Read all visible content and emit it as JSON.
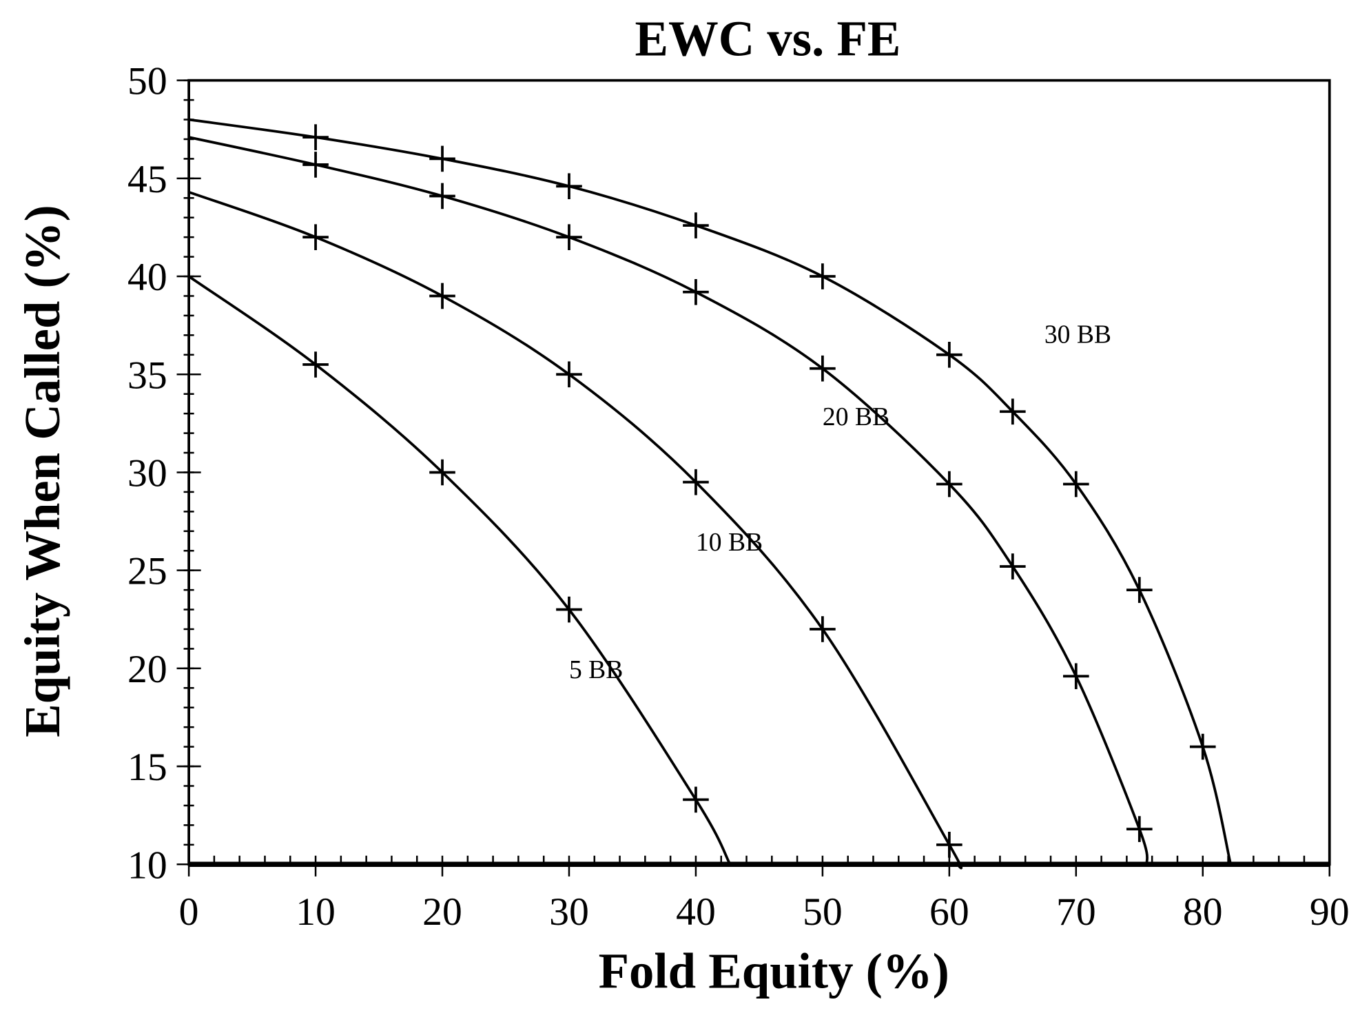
{
  "chart_data": {
    "type": "line",
    "title": "EWC vs. FE",
    "xlabel": "Fold Equity (%)",
    "ylabel": "Equity When Called (%)",
    "xlim": [
      0,
      90
    ],
    "ylim": [
      10,
      50
    ],
    "x_ticks": [
      0,
      10,
      20,
      30,
      40,
      50,
      60,
      70,
      80,
      90
    ],
    "y_ticks": [
      10,
      15,
      20,
      25,
      30,
      35,
      40,
      45,
      50
    ],
    "grid": false,
    "legend": "none (inline curve labels)",
    "series": [
      {
        "name": "5 BB",
        "label_at": [
          30,
          19.5
        ],
        "points": [
          [
            0,
            40
          ],
          [
            10,
            35.5
          ],
          [
            20,
            30
          ],
          [
            30,
            23
          ],
          [
            40,
            13.3
          ],
          [
            42.7,
            10
          ]
        ],
        "markers": [
          [
            10,
            35.5
          ],
          [
            20,
            30
          ],
          [
            30,
            23
          ],
          [
            40,
            13.3
          ]
        ]
      },
      {
        "name": "10 BB",
        "label_at": [
          40,
          26
        ],
        "points": [
          [
            0,
            44.3
          ],
          [
            10,
            42
          ],
          [
            20,
            39
          ],
          [
            30,
            35
          ],
          [
            40,
            29.5
          ],
          [
            50,
            22
          ],
          [
            60,
            11
          ],
          [
            60.6,
            10
          ]
        ],
        "markers": [
          [
            10,
            42
          ],
          [
            20,
            39
          ],
          [
            30,
            35
          ],
          [
            40,
            29.5
          ],
          [
            50,
            22
          ],
          [
            60,
            11
          ]
        ]
      },
      {
        "name": "20 BB",
        "label_at": [
          50,
          32.4
        ],
        "points": [
          [
            0,
            47.1
          ],
          [
            10,
            45.7
          ],
          [
            20,
            44.1
          ],
          [
            30,
            42
          ],
          [
            40,
            39.2
          ],
          [
            50,
            35.3
          ],
          [
            60,
            29.4
          ],
          [
            65,
            25.2
          ],
          [
            70,
            19.6
          ],
          [
            75,
            11.8
          ],
          [
            75.6,
            10
          ]
        ],
        "markers": [
          [
            10,
            45.7
          ],
          [
            20,
            44.1
          ],
          [
            30,
            42
          ],
          [
            40,
            39.2
          ],
          [
            50,
            35.3
          ],
          [
            60,
            29.4
          ],
          [
            65,
            25.2
          ],
          [
            70,
            19.6
          ],
          [
            75,
            11.8
          ]
        ]
      },
      {
        "name": "30 BB",
        "label_at": [
          67.5,
          36.6
        ],
        "points": [
          [
            0,
            48
          ],
          [
            10,
            47.1
          ],
          [
            20,
            46
          ],
          [
            30,
            44.6
          ],
          [
            40,
            42.6
          ],
          [
            50,
            40
          ],
          [
            60,
            36
          ],
          [
            65,
            33.1
          ],
          [
            70,
            29.4
          ],
          [
            75,
            24
          ],
          [
            80,
            16
          ],
          [
            82.2,
            10
          ]
        ],
        "markers": [
          [
            10,
            47.1
          ],
          [
            20,
            46
          ],
          [
            30,
            44.6
          ],
          [
            40,
            42.6
          ],
          [
            50,
            40
          ],
          [
            60,
            36
          ],
          [
            65,
            33.1
          ],
          [
            70,
            29.4
          ],
          [
            75,
            24
          ],
          [
            80,
            16
          ]
        ]
      }
    ]
  }
}
